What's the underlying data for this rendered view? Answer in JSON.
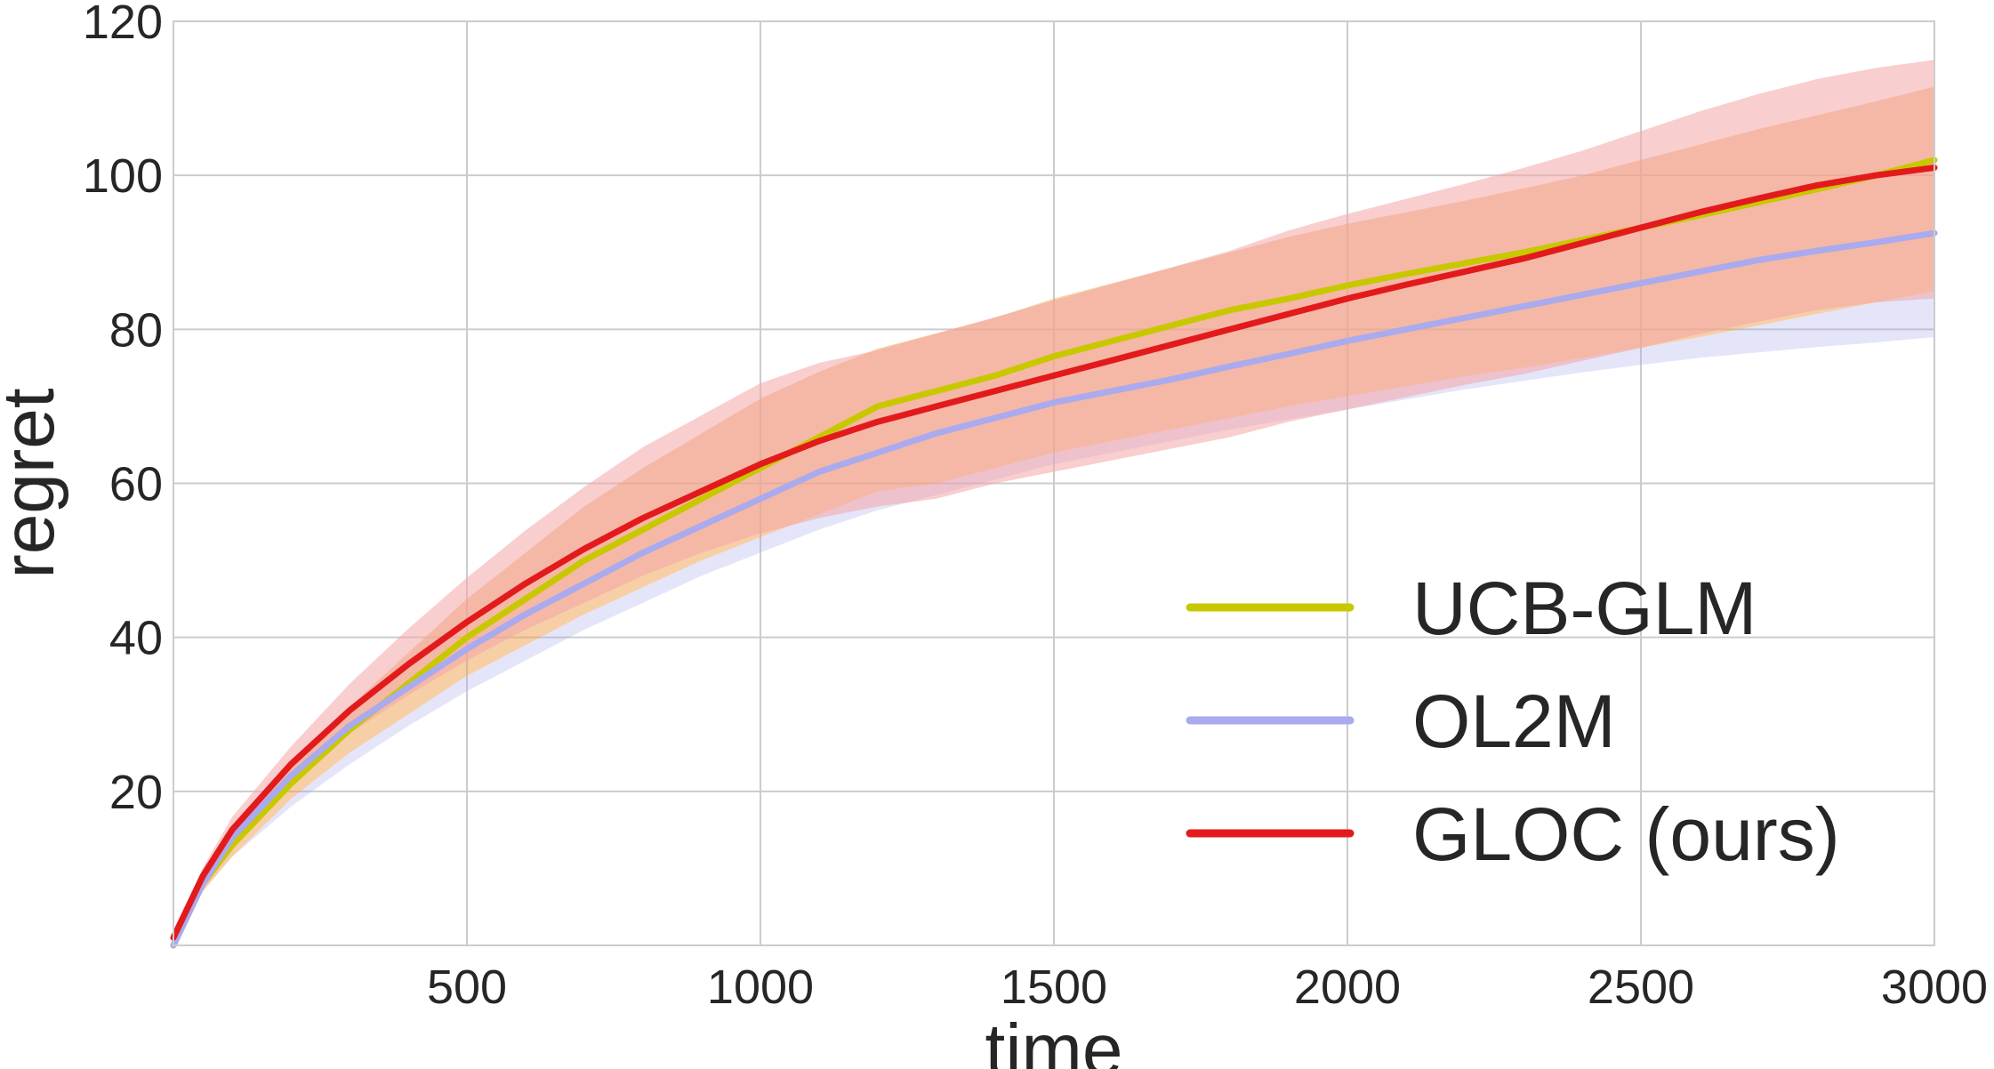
{
  "chart_data": {
    "type": "line",
    "title": "",
    "xlabel": "time",
    "ylabel": "regret",
    "xlim": [
      0,
      3000
    ],
    "ylim": [
      0,
      120
    ],
    "xticks": [
      500,
      1000,
      1500,
      2000,
      2500,
      3000
    ],
    "yticks": [
      20,
      40,
      60,
      80,
      100,
      120
    ],
    "xtick_labels": [
      "500",
      "1000",
      "1500",
      "2000",
      "2500",
      "3000"
    ],
    "ytick_labels": [
      "20",
      "40",
      "60",
      "80",
      "100",
      "120"
    ],
    "grid": true,
    "legend_position": "bottom-right",
    "x": [
      0,
      50,
      100,
      200,
      300,
      400,
      500,
      600,
      700,
      800,
      900,
      1000,
      1100,
      1200,
      1300,
      1400,
      1500,
      1600,
      1700,
      1800,
      1900,
      2000,
      2100,
      2200,
      2300,
      2400,
      2500,
      2600,
      2700,
      2800,
      2900,
      3000
    ],
    "series": [
      {
        "name": "UCB-GLM",
        "color": "#c8c800",
        "band_color": "#f0a050",
        "values": [
          0,
          8,
          13,
          21,
          28,
          34,
          40,
          45,
          50,
          54,
          58,
          62,
          66,
          70,
          72,
          74,
          76.5,
          78.5,
          80.5,
          82.5,
          84,
          85.7,
          87.2,
          88.6,
          90,
          91.6,
          93.2,
          94.8,
          96.5,
          98.2,
          100,
          102
        ],
        "lower": [
          0,
          7,
          11.5,
          19,
          25,
          30,
          35,
          39,
          43,
          46.5,
          50,
          53,
          56,
          59,
          60,
          62,
          64,
          65.5,
          67,
          68.5,
          70,
          71.3,
          72.6,
          73.9,
          75,
          76.3,
          77.6,
          79,
          80.5,
          82,
          83.5,
          85
        ],
        "upper": [
          0.5,
          9,
          14.5,
          23,
          31,
          38,
          45,
          51,
          57,
          62,
          66.5,
          71,
          74.5,
          77.5,
          79.5,
          81.5,
          84,
          86,
          88,
          90,
          92,
          93.7,
          95.2,
          96.7,
          98.3,
          100,
          102,
          104,
          106,
          107.8,
          109.6,
          111.5
        ]
      },
      {
        "name": "OL2M",
        "color": "#aaaaee",
        "band_color": "#aaaaee",
        "values": [
          0,
          8,
          14,
          22,
          28.5,
          33.5,
          38.5,
          43,
          47,
          51,
          54.5,
          58,
          61.5,
          64,
          66.5,
          68.5,
          70.5,
          72,
          73.5,
          75.2,
          76.8,
          78.5,
          80,
          81.5,
          83,
          84.5,
          86,
          87.5,
          89,
          90.2,
          91.3,
          92.5
        ],
        "lower": [
          0,
          7,
          11.5,
          18,
          23.5,
          28.5,
          33,
          37,
          41,
          44.5,
          48,
          51,
          54,
          56.5,
          58.5,
          60.5,
          62.5,
          64,
          65.5,
          67,
          68.3,
          69.6,
          70.9,
          72.2,
          73.3,
          74.4,
          75.4,
          76.3,
          77,
          77.7,
          78.3,
          79
        ]
      },
      {
        "name": "GLOC (ours)",
        "color": "#e31a1c",
        "band_color": "#f4a6a6",
        "values": [
          1,
          9,
          15,
          23.5,
          30.5,
          36.5,
          42,
          47,
          51.5,
          55.5,
          59,
          62.5,
          65.5,
          68,
          70,
          72,
          74,
          76,
          78,
          80,
          82,
          84,
          85.8,
          87.5,
          89.2,
          91.2,
          93.2,
          95.2,
          97,
          98.7,
          100,
          101
        ]
      }
    ],
    "legend": [
      "UCB-GLM",
      "OL2M",
      "GLOC (ours)"
    ]
  }
}
